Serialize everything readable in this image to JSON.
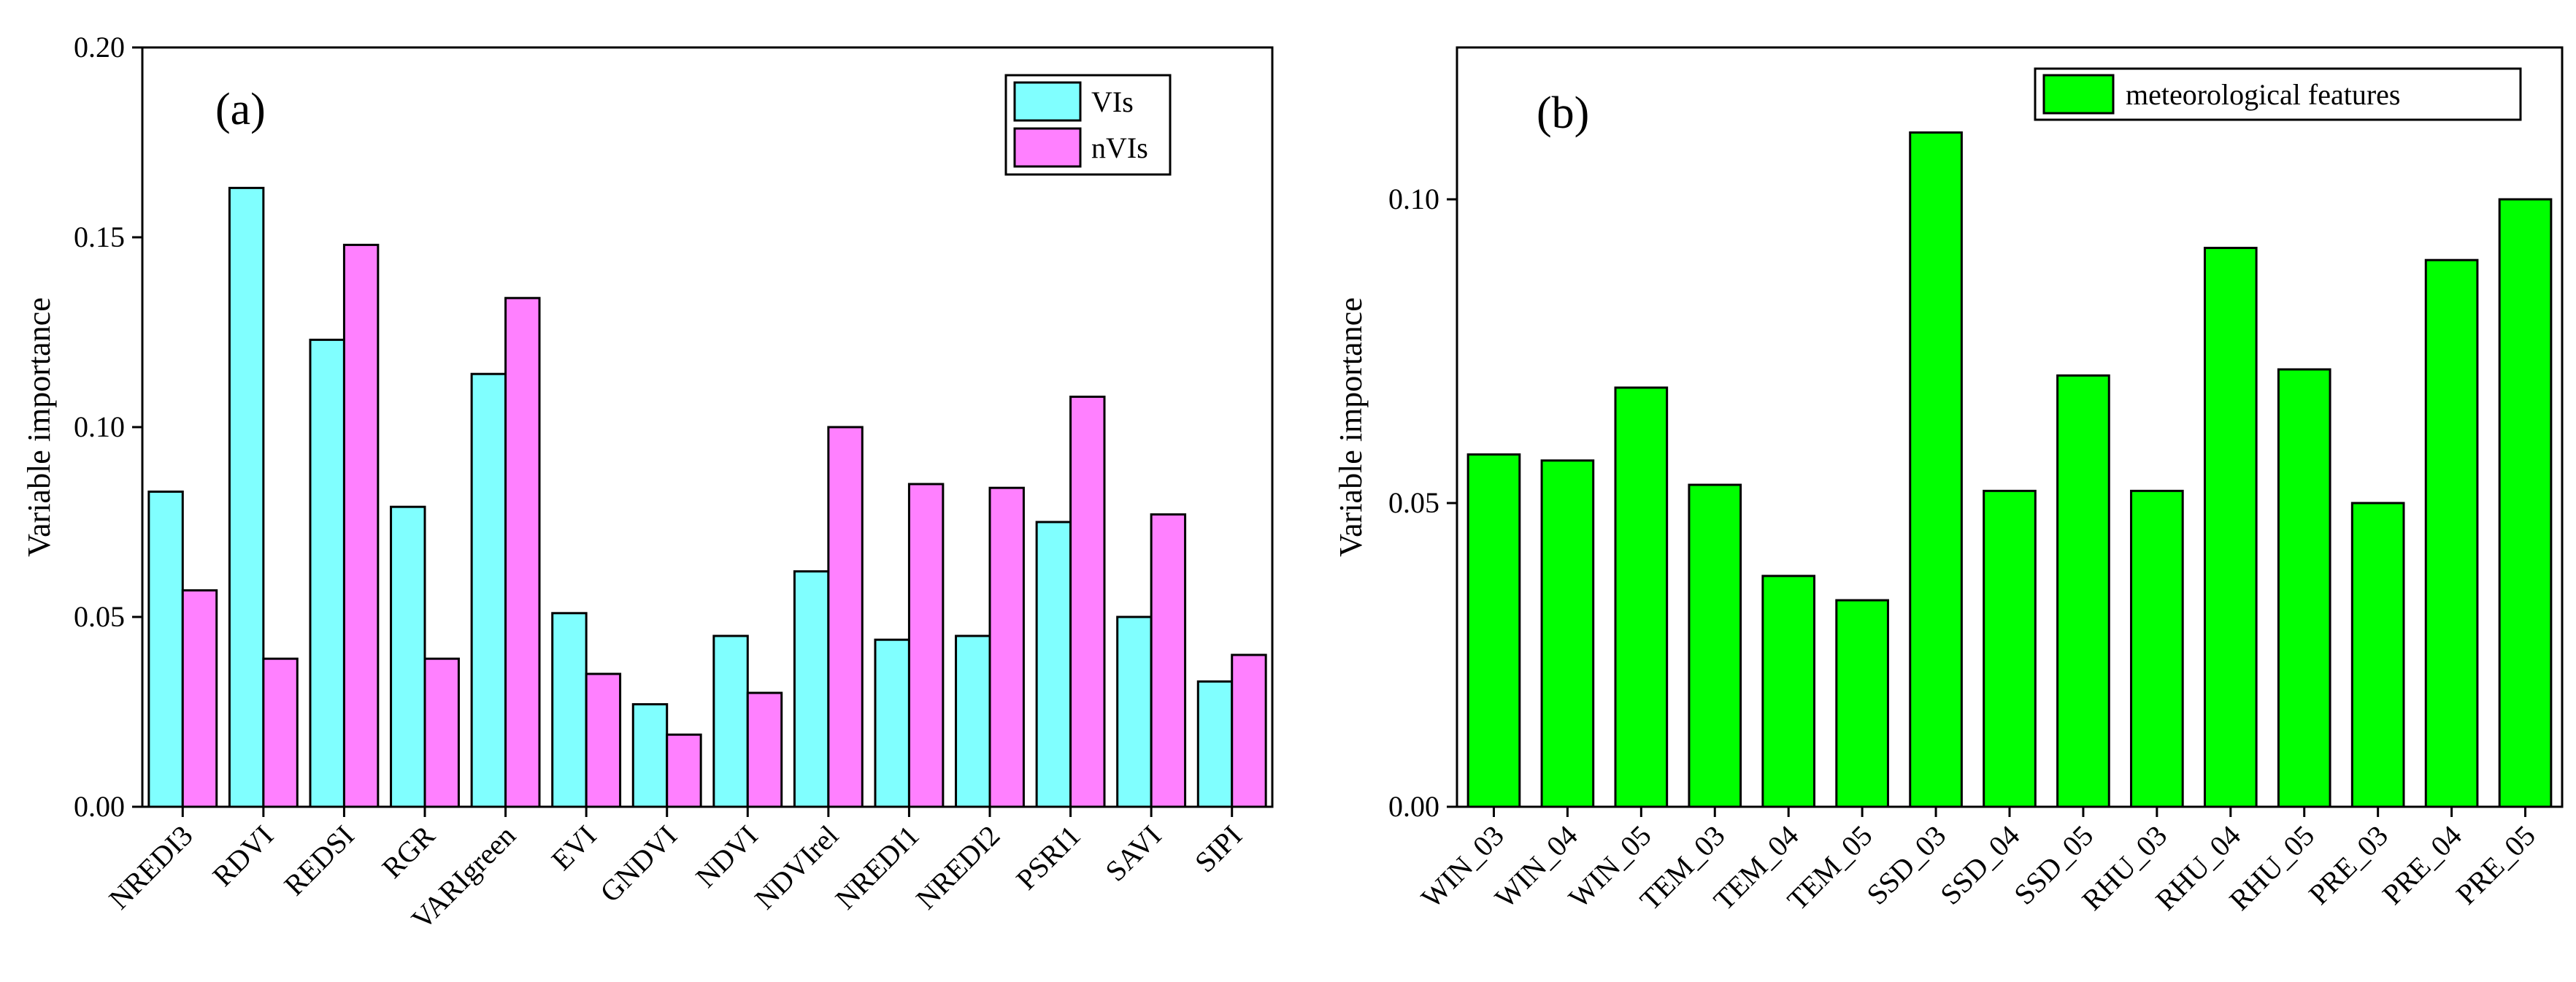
{
  "colors": {
    "vis": "#80ffff",
    "nvis": "#ff80ff",
    "met": "#00ff00",
    "axis": "#000000"
  },
  "chart_data": [
    {
      "type": "bar",
      "panel_label": "(a)",
      "title": "",
      "xlabel": "",
      "ylabel": "Variable importance",
      "ylim": [
        0,
        0.2
      ],
      "yticks": [
        "0.00",
        "0.05",
        "0.10",
        "0.15",
        "0.20"
      ],
      "legend_position": "top-right",
      "categories": [
        "NREDI3",
        "RDVI",
        "REDSI",
        "RGR",
        "VARIgreen",
        "EVI",
        "GNDVI",
        "NDVI",
        "NDVIrel",
        "NREDI1",
        "NREDI2",
        "PSRI1",
        "SAVI",
        "SIPI"
      ],
      "series": [
        {
          "name": "VIs",
          "values": [
            0.083,
            0.163,
            0.123,
            0.079,
            0.114,
            0.051,
            0.027,
            0.045,
            0.062,
            0.044,
            0.045,
            0.075,
            0.05,
            0.033
          ]
        },
        {
          "name": "nVIs",
          "values": [
            0.057,
            0.039,
            0.148,
            0.039,
            0.134,
            0.035,
            0.019,
            0.03,
            0.1,
            0.085,
            0.084,
            0.108,
            0.077,
            0.04
          ]
        }
      ]
    },
    {
      "type": "bar",
      "panel_label": "(b)",
      "title": "",
      "xlabel": "",
      "ylabel": "Variable importance",
      "ylim": [
        0,
        0.125
      ],
      "yticks": [
        "0.00",
        "0.05",
        "0.10"
      ],
      "legend_position": "top-right",
      "categories": [
        "WIN_03",
        "WIN_04",
        "WIN_05",
        "TEM_03",
        "TEM_04",
        "TEM_05",
        "SSD_03",
        "SSD_04",
        "SSD_05",
        "RHU_03",
        "RHU_04",
        "RHU_05",
        "PRE_03",
        "PRE_04",
        "PRE_05"
      ],
      "series": [
        {
          "name": "meteorological features",
          "values": [
            0.058,
            0.057,
            0.069,
            0.053,
            0.038,
            0.034,
            0.111,
            0.052,
            0.071,
            0.052,
            0.092,
            0.072,
            0.05,
            0.09,
            0.1
          ]
        }
      ]
    }
  ]
}
